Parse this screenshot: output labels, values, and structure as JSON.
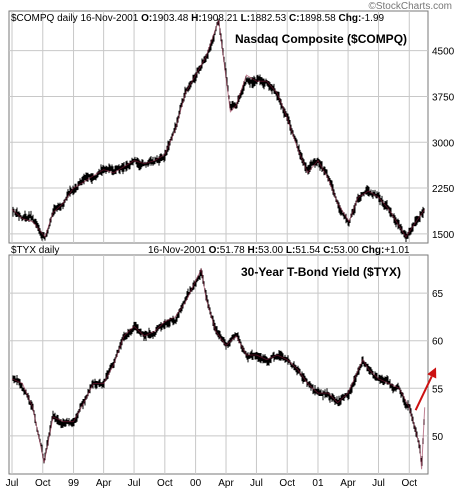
{
  "watermark": "©StockCharts.com",
  "colors": {
    "price": "#8b1a3a",
    "bar": "#000000",
    "grid": "#c8c8c8",
    "arrow": "#cc1111",
    "frame": "#7a7a7a"
  },
  "chart_data": [
    {
      "type": "line",
      "style": "ohlc-bars",
      "symbol_header": "$COMPQ daily",
      "date": "16-Nov-2001",
      "ohlc": {
        "O_label": "O:",
        "O": "1903.48",
        "H_label": "H:",
        "H": "1908.21",
        "L_label": "L:",
        "L": "1882.53",
        "C_label": "C:",
        "C": "1898.58",
        "Chg_label": "Chg:",
        "Chg": "-1.99"
      },
      "title": "Nasdaq Composite ($COMPQ)",
      "y_ticks": [
        1500,
        2250,
        3000,
        3750,
        4500
      ],
      "ylim": [
        1350,
        5150
      ],
      "grid": true,
      "x": [
        "1998-07-01",
        "1998-08-01",
        "1998-09-01",
        "1998-10-08",
        "1998-11-01",
        "1998-12-01",
        "1999-01-01",
        "1999-02-01",
        "1999-03-01",
        "1999-04-01",
        "1999-05-01",
        "1999-06-01",
        "1999-07-01",
        "1999-08-01",
        "1999-09-01",
        "1999-10-01",
        "1999-11-01",
        "1999-12-01",
        "2000-01-01",
        "2000-02-01",
        "2000-03-10",
        "2000-04-14",
        "2000-05-01",
        "2000-06-01",
        "2000-07-01",
        "2000-08-01",
        "2000-09-01",
        "2000-10-01",
        "2000-11-01",
        "2000-12-01",
        "2001-01-01",
        "2001-02-01",
        "2001-03-01",
        "2001-04-04",
        "2001-05-01",
        "2001-06-01",
        "2001-07-01",
        "2001-08-01",
        "2001-09-21",
        "2001-10-15",
        "2001-11-16"
      ],
      "values": [
        1900,
        1750,
        1700,
        1450,
        1850,
        2000,
        2250,
        2350,
        2450,
        2550,
        2500,
        2600,
        2700,
        2650,
        2700,
        2800,
        3200,
        3800,
        4100,
        4400,
        5000,
        3500,
        3600,
        4100,
        4000,
        4000,
        3800,
        3400,
        2900,
        2500,
        2700,
        2400,
        2000,
        1700,
        2100,
        2200,
        2100,
        1900,
        1450,
        1650,
        1900
      ]
    },
    {
      "type": "line",
      "style": "ohlc-bars",
      "symbol_header": "$TYX daily",
      "date": "16-Nov-2001",
      "ohlc": {
        "O_label": "O:",
        "O": "51.78",
        "H_label": "H:",
        "H": "53.00",
        "L_label": "L:",
        "L": "51.54",
        "C_label": "C:",
        "C": "53.00",
        "Chg_label": "Chg:",
        "Chg": "+1.01"
      },
      "title": "30-Year T-Bond Yield ($TYX)",
      "y_ticks": [
        50,
        55,
        60,
        65
      ],
      "ylim": [
        46,
        69
      ],
      "grid": true,
      "x_ticks": [
        "Jul",
        "Oct",
        "99",
        "Apr",
        "Jul",
        "Oct",
        "00",
        "Apr",
        "Jul",
        "Oct",
        "01",
        "Apr",
        "Jul",
        "Oct"
      ],
      "x_tick_dates": [
        "1998-07-01",
        "1998-10-01",
        "1999-01-01",
        "1999-04-01",
        "1999-07-01",
        "1999-10-01",
        "2000-01-01",
        "2000-04-01",
        "2000-07-01",
        "2000-10-01",
        "2001-01-01",
        "2001-04-01",
        "2001-07-01",
        "2001-10-01"
      ],
      "x": [
        "1998-07-01",
        "1998-08-01",
        "1998-09-01",
        "1998-10-05",
        "1998-11-01",
        "1998-12-01",
        "1999-01-01",
        "1999-02-01",
        "1999-03-01",
        "1999-04-01",
        "1999-05-01",
        "1999-06-01",
        "1999-07-01",
        "1999-08-01",
        "1999-09-01",
        "1999-10-01",
        "1999-11-01",
        "1999-12-01",
        "2000-01-18",
        "2000-02-01",
        "2000-03-01",
        "2000-04-01",
        "2000-05-01",
        "2000-06-01",
        "2000-07-01",
        "2000-08-01",
        "2000-09-01",
        "2000-10-01",
        "2000-11-01",
        "2000-12-01",
        "2001-01-01",
        "2001-02-01",
        "2001-03-01",
        "2001-04-01",
        "2001-05-15",
        "2001-06-01",
        "2001-07-01",
        "2001-08-01",
        "2001-09-01",
        "2001-10-01",
        "2001-11-01",
        "2001-11-07",
        "2001-11-16"
      ],
      "values": [
        56,
        55.5,
        53,
        47.2,
        52,
        51.5,
        51.5,
        53.5,
        55.5,
        55.5,
        57.5,
        60.5,
        61.5,
        60.5,
        61,
        62,
        62.5,
        64,
        67.5,
        64.5,
        61,
        59.5,
        60.5,
        58.5,
        58.5,
        58,
        58.5,
        58,
        57,
        55.5,
        54.5,
        54.5,
        53.5,
        54.5,
        58,
        57,
        56,
        55.5,
        55,
        53,
        49,
        46.5,
        53
      ],
      "annotation": {
        "type": "arrow",
        "from_date": "2001-10-20",
        "from_value": 52.7,
        "to_date": "2001-12-20",
        "to_value": 57.2
      }
    }
  ]
}
